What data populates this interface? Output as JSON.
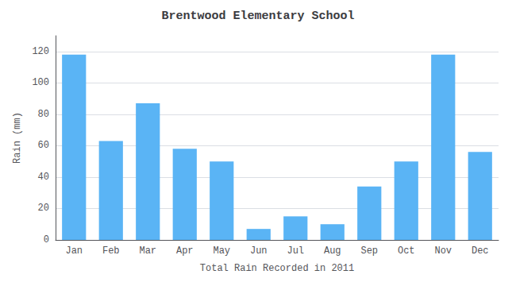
{
  "chart_data": {
    "type": "bar",
    "title": "Brentwood Elementary School",
    "xlabel": "Total Rain Recorded in 2011",
    "ylabel": "Rain (mm)",
    "categories": [
      "Jan",
      "Feb",
      "Mar",
      "Apr",
      "May",
      "Jun",
      "Jul",
      "Aug",
      "Sep",
      "Oct",
      "Nov",
      "Dec"
    ],
    "values": [
      118,
      63,
      87,
      58,
      50,
      7,
      15,
      10,
      34,
      50,
      118,
      56
    ],
    "color": "#5ab4f5",
    "ylim": [
      0,
      130
    ],
    "yticks": [
      0,
      20,
      40,
      60,
      80,
      100,
      120
    ],
    "grid": true
  }
}
